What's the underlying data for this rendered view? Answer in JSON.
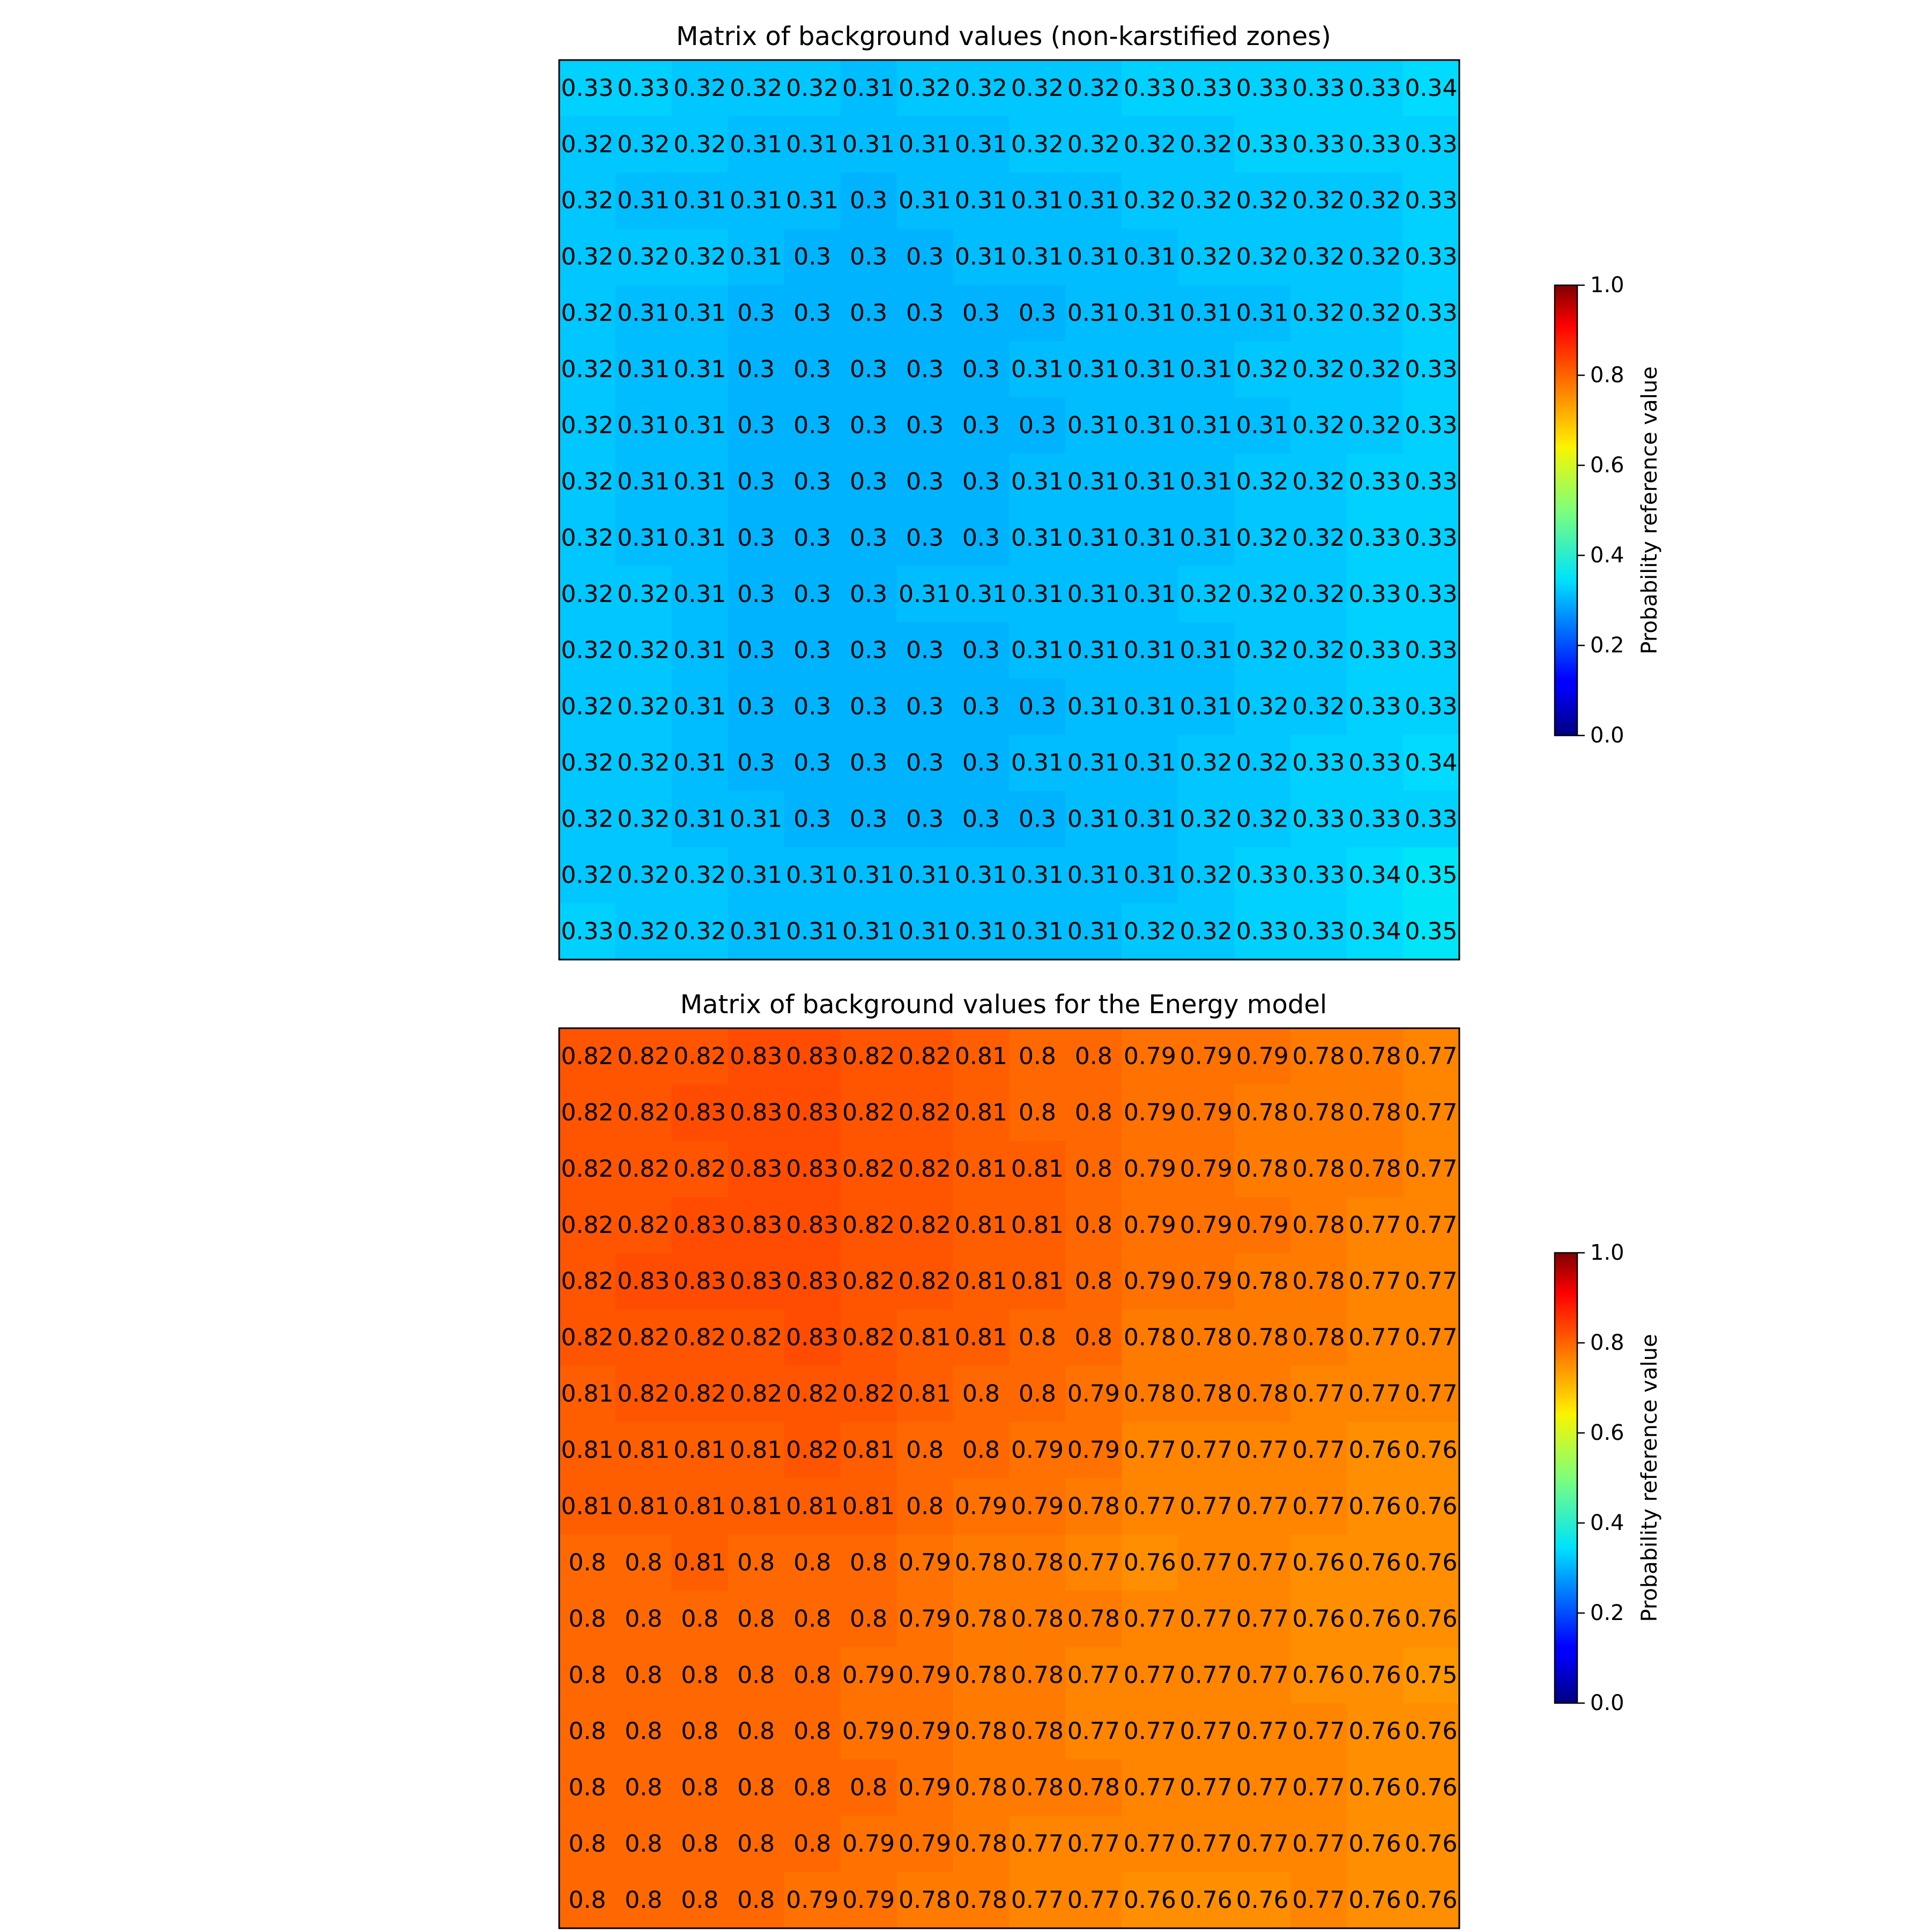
{
  "figure": {
    "colormap": "jet",
    "cell_text_color": "#000000",
    "frame_color": "#000000"
  },
  "chart_data": [
    {
      "type": "heatmap",
      "title": "Matrix of background values (non-karstified zones)",
      "colorbar": {
        "label": "Probability reference value",
        "range": [
          0.0,
          1.0
        ],
        "ticks": [
          "0.0",
          "0.2",
          "0.4",
          "0.6",
          "0.8",
          "1.0"
        ],
        "placement": "right"
      },
      "rows": 16,
      "cols": 16,
      "values": [
        [
          "0.33",
          "0.33",
          "0.32",
          "0.32",
          "0.32",
          "0.31",
          "0.32",
          "0.32",
          "0.32",
          "0.32",
          "0.33",
          "0.33",
          "0.33",
          "0.33",
          "0.33",
          "0.34"
        ],
        [
          "0.32",
          "0.32",
          "0.32",
          "0.31",
          "0.31",
          "0.31",
          "0.31",
          "0.31",
          "0.32",
          "0.32",
          "0.32",
          "0.32",
          "0.33",
          "0.33",
          "0.33",
          "0.33"
        ],
        [
          "0.32",
          "0.31",
          "0.31",
          "0.31",
          "0.31",
          "0.3",
          "0.31",
          "0.31",
          "0.31",
          "0.31",
          "0.32",
          "0.32",
          "0.32",
          "0.32",
          "0.32",
          "0.33"
        ],
        [
          "0.32",
          "0.32",
          "0.32",
          "0.31",
          "0.3",
          "0.3",
          "0.3",
          "0.31",
          "0.31",
          "0.31",
          "0.31",
          "0.32",
          "0.32",
          "0.32",
          "0.32",
          "0.33"
        ],
        [
          "0.32",
          "0.31",
          "0.31",
          "0.3",
          "0.3",
          "0.3",
          "0.3",
          "0.3",
          "0.3",
          "0.31",
          "0.31",
          "0.31",
          "0.31",
          "0.32",
          "0.32",
          "0.33"
        ],
        [
          "0.32",
          "0.31",
          "0.31",
          "0.3",
          "0.3",
          "0.3",
          "0.3",
          "0.3",
          "0.31",
          "0.31",
          "0.31",
          "0.31",
          "0.32",
          "0.32",
          "0.32",
          "0.33"
        ],
        [
          "0.32",
          "0.31",
          "0.31",
          "0.3",
          "0.3",
          "0.3",
          "0.3",
          "0.3",
          "0.3",
          "0.31",
          "0.31",
          "0.31",
          "0.31",
          "0.32",
          "0.32",
          "0.33"
        ],
        [
          "0.32",
          "0.31",
          "0.31",
          "0.3",
          "0.3",
          "0.3",
          "0.3",
          "0.3",
          "0.31",
          "0.31",
          "0.31",
          "0.31",
          "0.32",
          "0.32",
          "0.33",
          "0.33"
        ],
        [
          "0.32",
          "0.31",
          "0.31",
          "0.3",
          "0.3",
          "0.3",
          "0.3",
          "0.3",
          "0.31",
          "0.31",
          "0.31",
          "0.31",
          "0.32",
          "0.32",
          "0.33",
          "0.33"
        ],
        [
          "0.32",
          "0.32",
          "0.31",
          "0.3",
          "0.3",
          "0.3",
          "0.31",
          "0.31",
          "0.31",
          "0.31",
          "0.31",
          "0.32",
          "0.32",
          "0.32",
          "0.33",
          "0.33"
        ],
        [
          "0.32",
          "0.32",
          "0.31",
          "0.3",
          "0.3",
          "0.3",
          "0.3",
          "0.3",
          "0.31",
          "0.31",
          "0.31",
          "0.31",
          "0.32",
          "0.32",
          "0.33",
          "0.33"
        ],
        [
          "0.32",
          "0.32",
          "0.31",
          "0.3",
          "0.3",
          "0.3",
          "0.3",
          "0.3",
          "0.3",
          "0.31",
          "0.31",
          "0.31",
          "0.32",
          "0.32",
          "0.33",
          "0.33"
        ],
        [
          "0.32",
          "0.32",
          "0.31",
          "0.3",
          "0.3",
          "0.3",
          "0.3",
          "0.3",
          "0.31",
          "0.31",
          "0.31",
          "0.32",
          "0.32",
          "0.33",
          "0.33",
          "0.34"
        ],
        [
          "0.32",
          "0.32",
          "0.31",
          "0.31",
          "0.3",
          "0.3",
          "0.3",
          "0.3",
          "0.3",
          "0.31",
          "0.31",
          "0.32",
          "0.32",
          "0.33",
          "0.33",
          "0.33"
        ],
        [
          "0.32",
          "0.32",
          "0.32",
          "0.31",
          "0.31",
          "0.31",
          "0.31",
          "0.31",
          "0.31",
          "0.31",
          "0.31",
          "0.32",
          "0.33",
          "0.33",
          "0.34",
          "0.35"
        ],
        [
          "0.33",
          "0.32",
          "0.32",
          "0.31",
          "0.31",
          "0.31",
          "0.31",
          "0.31",
          "0.31",
          "0.31",
          "0.32",
          "0.32",
          "0.33",
          "0.33",
          "0.34",
          "0.35"
        ]
      ]
    },
    {
      "type": "heatmap",
      "title": "Matrix of background values for the Energy model",
      "colorbar": {
        "label": "Probability reference value",
        "range": [
          0.0,
          1.0
        ],
        "ticks": [
          "0.0",
          "0.2",
          "0.4",
          "0.6",
          "0.8",
          "1.0"
        ],
        "placement": "right"
      },
      "rows": 16,
      "cols": 16,
      "values": [
        [
          "0.82",
          "0.82",
          "0.82",
          "0.83",
          "0.83",
          "0.82",
          "0.82",
          "0.81",
          "0.8",
          "0.8",
          "0.79",
          "0.79",
          "0.79",
          "0.78",
          "0.78",
          "0.77"
        ],
        [
          "0.82",
          "0.82",
          "0.83",
          "0.83",
          "0.83",
          "0.82",
          "0.82",
          "0.81",
          "0.8",
          "0.8",
          "0.79",
          "0.79",
          "0.78",
          "0.78",
          "0.78",
          "0.77"
        ],
        [
          "0.82",
          "0.82",
          "0.82",
          "0.83",
          "0.83",
          "0.82",
          "0.82",
          "0.81",
          "0.81",
          "0.8",
          "0.79",
          "0.79",
          "0.78",
          "0.78",
          "0.78",
          "0.77"
        ],
        [
          "0.82",
          "0.82",
          "0.83",
          "0.83",
          "0.83",
          "0.82",
          "0.82",
          "0.81",
          "0.81",
          "0.8",
          "0.79",
          "0.79",
          "0.79",
          "0.78",
          "0.77",
          "0.77"
        ],
        [
          "0.82",
          "0.83",
          "0.83",
          "0.83",
          "0.83",
          "0.82",
          "0.82",
          "0.81",
          "0.81",
          "0.8",
          "0.79",
          "0.79",
          "0.78",
          "0.78",
          "0.77",
          "0.77"
        ],
        [
          "0.82",
          "0.82",
          "0.82",
          "0.82",
          "0.83",
          "0.82",
          "0.81",
          "0.81",
          "0.8",
          "0.8",
          "0.78",
          "0.78",
          "0.78",
          "0.78",
          "0.77",
          "0.77"
        ],
        [
          "0.81",
          "0.82",
          "0.82",
          "0.82",
          "0.82",
          "0.82",
          "0.81",
          "0.8",
          "0.8",
          "0.79",
          "0.78",
          "0.78",
          "0.78",
          "0.77",
          "0.77",
          "0.77"
        ],
        [
          "0.81",
          "0.81",
          "0.81",
          "0.81",
          "0.82",
          "0.81",
          "0.8",
          "0.8",
          "0.79",
          "0.79",
          "0.77",
          "0.77",
          "0.77",
          "0.77",
          "0.76",
          "0.76"
        ],
        [
          "0.81",
          "0.81",
          "0.81",
          "0.81",
          "0.81",
          "0.81",
          "0.8",
          "0.79",
          "0.79",
          "0.78",
          "0.77",
          "0.77",
          "0.77",
          "0.77",
          "0.76",
          "0.76"
        ],
        [
          "0.8",
          "0.8",
          "0.81",
          "0.8",
          "0.8",
          "0.8",
          "0.79",
          "0.78",
          "0.78",
          "0.77",
          "0.76",
          "0.77",
          "0.77",
          "0.76",
          "0.76",
          "0.76"
        ],
        [
          "0.8",
          "0.8",
          "0.8",
          "0.8",
          "0.8",
          "0.8",
          "0.79",
          "0.78",
          "0.78",
          "0.78",
          "0.77",
          "0.77",
          "0.77",
          "0.76",
          "0.76",
          "0.76"
        ],
        [
          "0.8",
          "0.8",
          "0.8",
          "0.8",
          "0.8",
          "0.79",
          "0.79",
          "0.78",
          "0.78",
          "0.77",
          "0.77",
          "0.77",
          "0.77",
          "0.76",
          "0.76",
          "0.75"
        ],
        [
          "0.8",
          "0.8",
          "0.8",
          "0.8",
          "0.8",
          "0.79",
          "0.79",
          "0.78",
          "0.78",
          "0.77",
          "0.77",
          "0.77",
          "0.77",
          "0.77",
          "0.76",
          "0.76"
        ],
        [
          "0.8",
          "0.8",
          "0.8",
          "0.8",
          "0.8",
          "0.8",
          "0.79",
          "0.78",
          "0.78",
          "0.78",
          "0.77",
          "0.77",
          "0.77",
          "0.77",
          "0.76",
          "0.76"
        ],
        [
          "0.8",
          "0.8",
          "0.8",
          "0.8",
          "0.8",
          "0.79",
          "0.79",
          "0.78",
          "0.77",
          "0.77",
          "0.77",
          "0.77",
          "0.77",
          "0.77",
          "0.76",
          "0.76"
        ],
        [
          "0.8",
          "0.8",
          "0.8",
          "0.8",
          "0.79",
          "0.79",
          "0.78",
          "0.78",
          "0.77",
          "0.77",
          "0.76",
          "0.76",
          "0.76",
          "0.77",
          "0.76",
          "0.76"
        ]
      ]
    }
  ]
}
